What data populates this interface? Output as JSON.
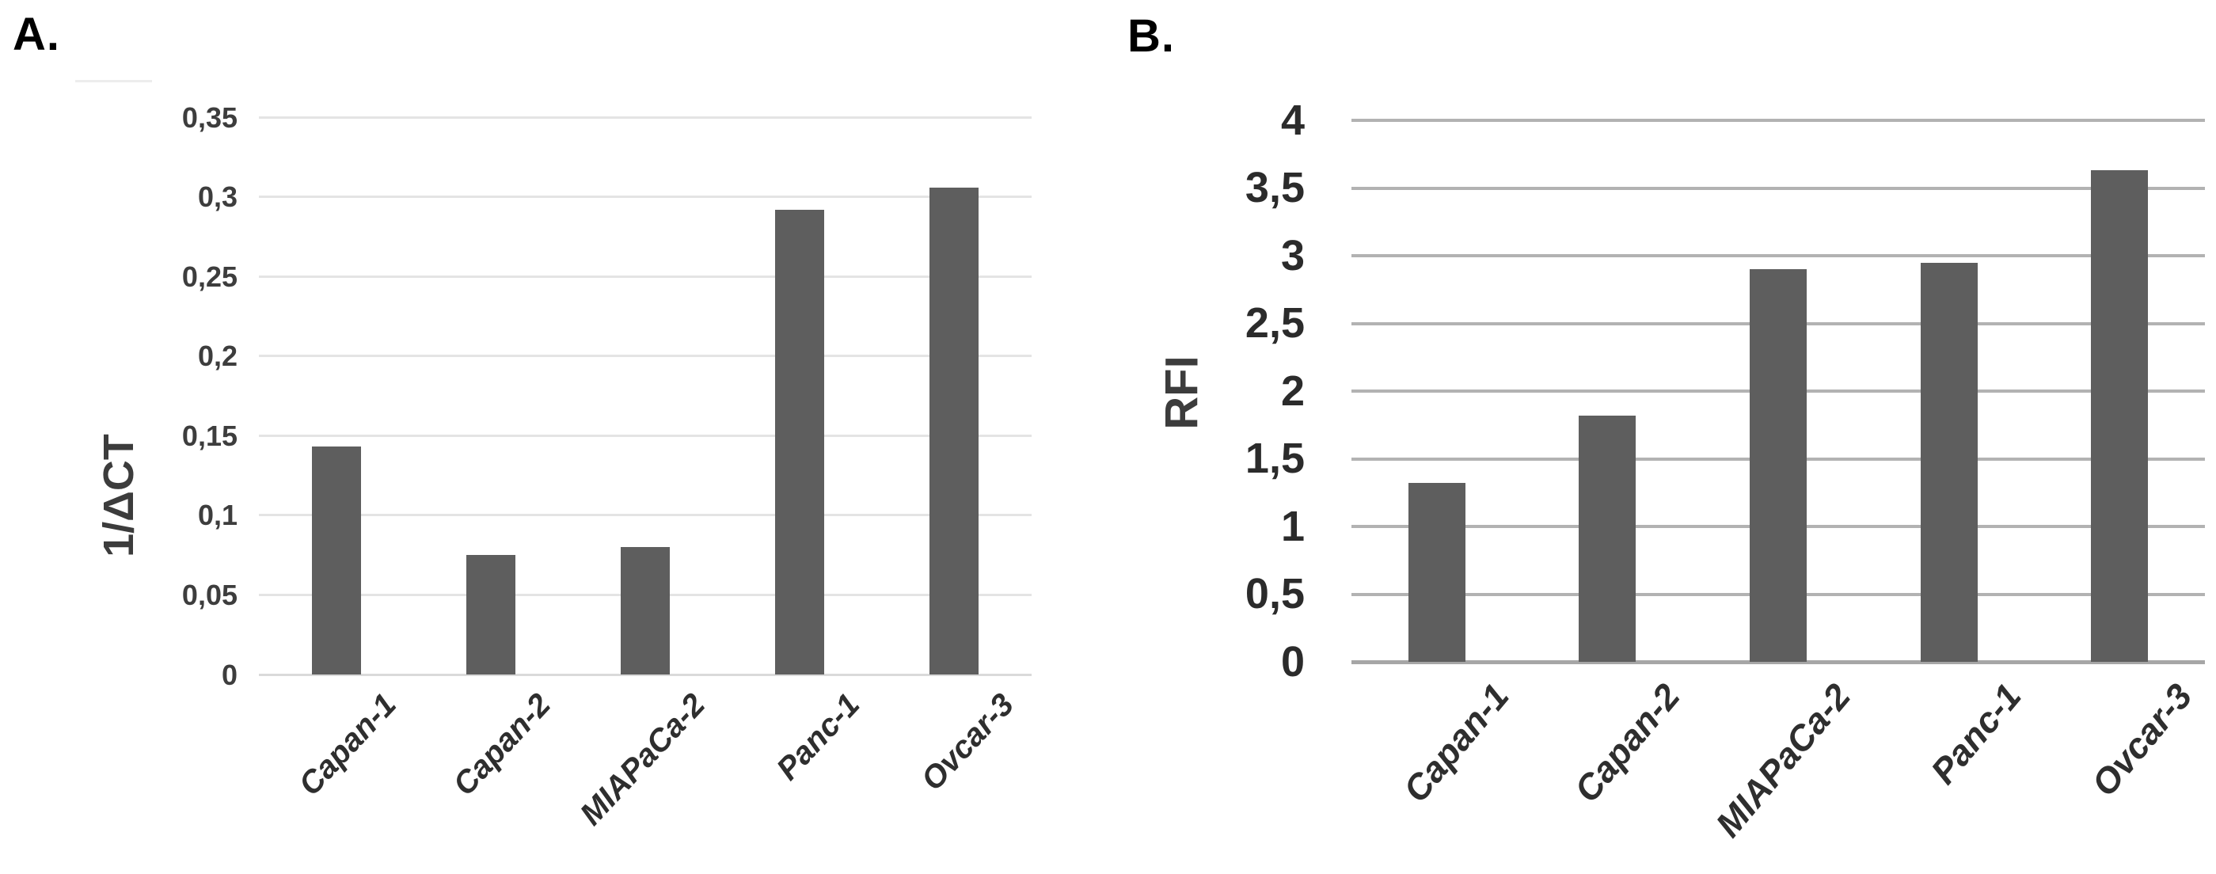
{
  "panels": [
    {
      "label": "A."
    },
    {
      "label": "B."
    }
  ],
  "chart_data": [
    {
      "type": "bar",
      "panel": "A.",
      "title": "",
      "categories": [
        "Capan-1",
        "Capan-2",
        "MIAPaCa-2",
        "Panc-1",
        "Ovcar-3"
      ],
      "values": [
        0.143,
        0.075,
        0.08,
        0.292,
        0.306
      ],
      "xlabel": "",
      "ylabel": "1/ΔCT",
      "ylim": [
        0,
        0.35
      ],
      "ytick_step": 0.05,
      "ytick_labels": [
        "0",
        "0,05",
        "0,1",
        "0,15",
        "0,2",
        "0,25",
        "0,3",
        "0,35"
      ],
      "decimal_separator": ",",
      "grid": true,
      "legend": "none",
      "bar_color": "#5e5e5e",
      "gridline_color": "#e4e4e4",
      "axis_line_color": "#dadada"
    },
    {
      "type": "bar",
      "panel": "B.",
      "title": "",
      "categories": [
        "Capan-1",
        "Capan-2",
        "MIAPaCa-2",
        "Panc-1",
        "Ovcar-3"
      ],
      "values": [
        1.32,
        1.82,
        2.9,
        2.95,
        3.63
      ],
      "xlabel": "",
      "ylabel": "RFI",
      "ylim": [
        0,
        4
      ],
      "ytick_step": 0.5,
      "ytick_labels": [
        "0",
        "0,5",
        "1",
        "1,5",
        "2",
        "2,5",
        "3",
        "3,5",
        "4"
      ],
      "decimal_separator": ",",
      "grid": true,
      "legend": "none",
      "bar_color": "#5e5e5e",
      "gridline_color": "#b2b2b2",
      "axis_line_color": "#a6a6a6"
    }
  ]
}
